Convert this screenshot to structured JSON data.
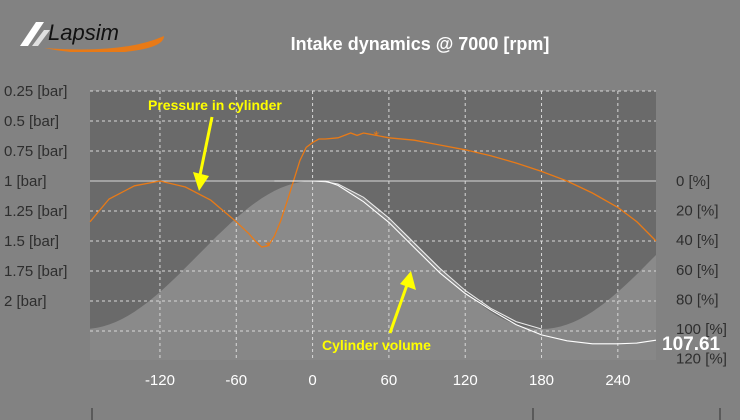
{
  "app": {
    "brand": "Lapsim",
    "title": "Intake dynamics @ 7000 [rpm]",
    "current_value": "107.61"
  },
  "colors": {
    "pressure": "#e87a17",
    "volume": "#ffffff",
    "annotation": "#ffff00",
    "plot_bg_dark": "#6a6a6a",
    "plot_bg_light": "#8a8a8a",
    "page_bg": "#828282"
  },
  "chart_data": {
    "type": "line",
    "title": "Intake dynamics @ 7000 [rpm]",
    "x_ticks": [
      "-120",
      "-60",
      "0",
      "60",
      "120",
      "180",
      "240"
    ],
    "xlim": [
      -175,
      270
    ],
    "y_left_ticks": [
      "0.25 [bar]",
      "0.5 [bar]",
      "0.75 [bar]",
      "1 [bar]",
      "1.25 [bar]",
      "1.5 [bar]",
      "1.75 [bar]",
      "2 [bar]"
    ],
    "y_left_lim": [
      0.25,
      2.25
    ],
    "y_right_ticks": [
      "0 [%]",
      "20 [%]",
      "40 [%]",
      "60 [%]",
      "80 [%]",
      "100 [%]",
      "120 [%]"
    ],
    "annotations": [
      {
        "text": "Pressure in cylinder"
      },
      {
        "text": "Cylinder volume"
      }
    ],
    "series": [
      {
        "name": "Pressure in cylinder",
        "x": [
          -175,
          -160,
          -140,
          -120,
          -100,
          -80,
          -60,
          -50,
          -45,
          -40,
          -35,
          -30,
          -25,
          -20,
          -15,
          -10,
          -5,
          0,
          5,
          10,
          20,
          30,
          35,
          40,
          45,
          50,
          60,
          80,
          100,
          120,
          140,
          160,
          180,
          200,
          220,
          240,
          255,
          270
        ],
        "y": [
          1.34,
          1.15,
          1.04,
          1.0,
          1.05,
          1.16,
          1.34,
          1.44,
          1.5,
          1.55,
          1.54,
          1.46,
          1.33,
          1.17,
          1.0,
          0.83,
          0.72,
          0.68,
          0.65,
          0.65,
          0.64,
          0.6,
          0.62,
          0.6,
          0.61,
          0.62,
          0.64,
          0.66,
          0.7,
          0.74,
          0.79,
          0.85,
          0.92,
          1.0,
          1.1,
          1.22,
          1.34,
          1.5
        ],
        "markers": [
          [
            -35,
            1.54
          ],
          [
            50,
            0.62
          ]
        ]
      },
      {
        "name": "Cylinder volume (measured)",
        "x": [
          -30,
          0,
          10,
          20,
          40,
          60,
          80,
          100,
          120,
          140,
          160,
          180,
          200,
          220,
          240,
          255,
          270
        ],
        "y": [
          0,
          0,
          0,
          3,
          14,
          28,
          45,
          62,
          76,
          87,
          97,
          104,
          108,
          110,
          110,
          109.5,
          107.6
        ]
      },
      {
        "name": "Cylinder volume (geometric)",
        "x": [
          0,
          10,
          20,
          40,
          60,
          80,
          100,
          120,
          140,
          160,
          180
        ],
        "y": [
          0,
          0.5,
          2,
          11,
          25,
          42,
          59,
          74,
          86,
          95,
          100
        ]
      }
    ]
  }
}
